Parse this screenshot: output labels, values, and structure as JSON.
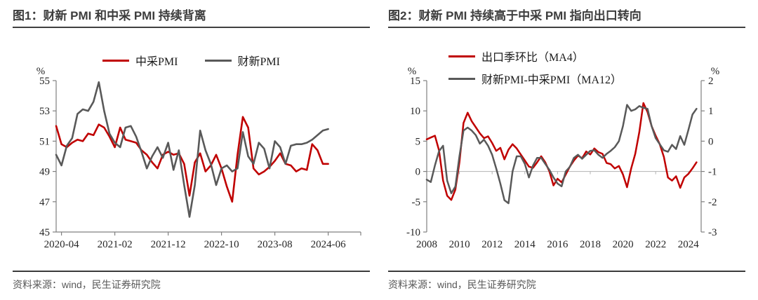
{
  "colors": {
    "red": "#C00000",
    "gray": "#595959",
    "axis": "#808080",
    "zero_line": "#b3b3b3",
    "title_text": "#3d3d3d",
    "rule": "#404040",
    "source_text": "#595959"
  },
  "figure1": {
    "title": "图1：财新 PMI 和中采 PMI 持续背离",
    "source": "资料来源：wind，民生证券研究院",
    "chart_data": {
      "type": "line",
      "unit_label": "%",
      "ylim": [
        45,
        55
      ],
      "yticks": [
        55,
        53,
        51,
        49,
        47,
        45
      ],
      "x_months_start": "2020-03",
      "x_tick_labels": [
        "2020-04",
        "2021-02",
        "2021-12",
        "2022-10",
        "2023-08",
        "2024-06"
      ],
      "x_tick_indices": [
        1,
        11,
        21,
        31,
        41,
        51
      ],
      "grid": false,
      "legend_position": "top-center",
      "series": [
        {
          "name": "中采PMI",
          "color": "#C00000",
          "values": [
            52.0,
            50.8,
            50.6,
            50.9,
            51.1,
            51.0,
            51.5,
            51.4,
            52.1,
            51.9,
            51.3,
            50.6,
            51.9,
            51.1,
            51.0,
            50.9,
            50.4,
            50.1,
            49.6,
            49.2,
            50.1,
            50.3,
            50.1,
            50.2,
            49.5,
            47.4,
            49.6,
            50.2,
            49.0,
            49.4,
            50.1,
            49.2,
            48.0,
            47.0,
            50.1,
            52.6,
            51.9,
            49.2,
            48.8,
            49.0,
            49.3,
            49.7,
            50.2,
            49.5,
            49.4,
            49.0,
            49.2,
            49.1,
            50.8,
            50.4,
            49.5,
            49.5
          ]
        },
        {
          "name": "财新PMI",
          "color": "#595959",
          "values": [
            50.1,
            49.4,
            50.7,
            51.2,
            52.8,
            53.1,
            53.0,
            53.6,
            54.9,
            53.0,
            51.5,
            50.9,
            50.6,
            51.9,
            52.0,
            51.3,
            50.3,
            49.2,
            50.0,
            50.6,
            49.9,
            50.9,
            49.1,
            50.4,
            48.1,
            46.0,
            48.1,
            51.7,
            50.4,
            49.5,
            48.1,
            49.2,
            49.4,
            49.0,
            49.2,
            51.6,
            50.0,
            49.5,
            50.9,
            50.5,
            49.2,
            51.0,
            50.6,
            49.5,
            50.7,
            50.8,
            50.8,
            50.9,
            51.1,
            51.4,
            51.7,
            51.8
          ]
        }
      ]
    }
  },
  "figure2": {
    "title": "图2：财新 PMI 持续高于中采 PMI 指向出口转向",
    "source": "资料来源：wind，民生证券研究院",
    "chart_data": {
      "type": "line",
      "left_axis": {
        "unit": "%",
        "ylim": [
          -10,
          15
        ],
        "ticks": [
          15,
          10,
          5,
          0,
          -5,
          -10
        ]
      },
      "right_axis": {
        "unit": "%",
        "ylim": [
          -3,
          2
        ],
        "ticks": [
          2,
          1,
          0,
          -1,
          -2,
          -3
        ]
      },
      "x_start": 2008,
      "x_step_years": 0.25,
      "x_tick_labels": [
        "2008",
        "2010",
        "2012",
        "2014",
        "2016",
        "2018",
        "2020",
        "2022",
        "2024"
      ],
      "zero_baseline": true,
      "legend_position": "top-left",
      "series": [
        {
          "name": "出口季环比（MA4）",
          "axis": "left",
          "color": "#C00000",
          "values": [
            5.3,
            5.6,
            5.9,
            3.5,
            -1.5,
            -4.0,
            -4.7,
            -3.0,
            1.5,
            8.0,
            9.7,
            8.3,
            7.3,
            6.3,
            5.5,
            5.8,
            4.7,
            3.4,
            3.9,
            2.0,
            3.6,
            4.5,
            3.8,
            2.8,
            1.8,
            0.8,
            0.6,
            1.5,
            2.5,
            1.5,
            0.0,
            -2.3,
            -1.2,
            -1.8,
            -0.5,
            0.8,
            1.8,
            2.6,
            2.2,
            3.3,
            2.8,
            3.8,
            3.2,
            2.9,
            1.4,
            1.2,
            0.5,
            0.9,
            -0.5,
            -2.6,
            0.5,
            2.9,
            6.5,
            11.3,
            9.8,
            7.5,
            5.9,
            4.5,
            2.4,
            -1.0,
            -1.5,
            -0.8,
            -2.7,
            -1.0,
            -0.4,
            0.5,
            1.5
          ]
        },
        {
          "name": "财新PMI-中采PMI（MA12）",
          "axis": "right",
          "color": "#595959",
          "values": [
            -1.27,
            -1.35,
            -0.8,
            -0.33,
            -0.15,
            -1.3,
            -1.72,
            -1.5,
            -0.5,
            0.35,
            0.45,
            0.35,
            0.2,
            -0.08,
            0.05,
            -0.15,
            -0.45,
            -0.9,
            -1.4,
            -1.95,
            -2.05,
            -1.0,
            -0.5,
            -0.5,
            -0.75,
            -1.2,
            -0.8,
            -0.55,
            -0.55,
            -0.75,
            -0.95,
            -1.2,
            -1.4,
            -1.49,
            -1.0,
            -0.85,
            -0.55,
            -0.45,
            -0.58,
            -0.45,
            -0.32,
            -0.3,
            -0.45,
            -0.55,
            -0.42,
            -0.32,
            -0.2,
            0.0,
            0.5,
            1.2,
            1.0,
            1.05,
            1.16,
            1.1,
            1.07,
            0.5,
            0.1,
            -0.1,
            -0.3,
            -0.35,
            -0.12,
            -0.26,
            0.17,
            -0.12,
            0.37,
            0.88,
            1.07
          ]
        }
      ]
    }
  }
}
